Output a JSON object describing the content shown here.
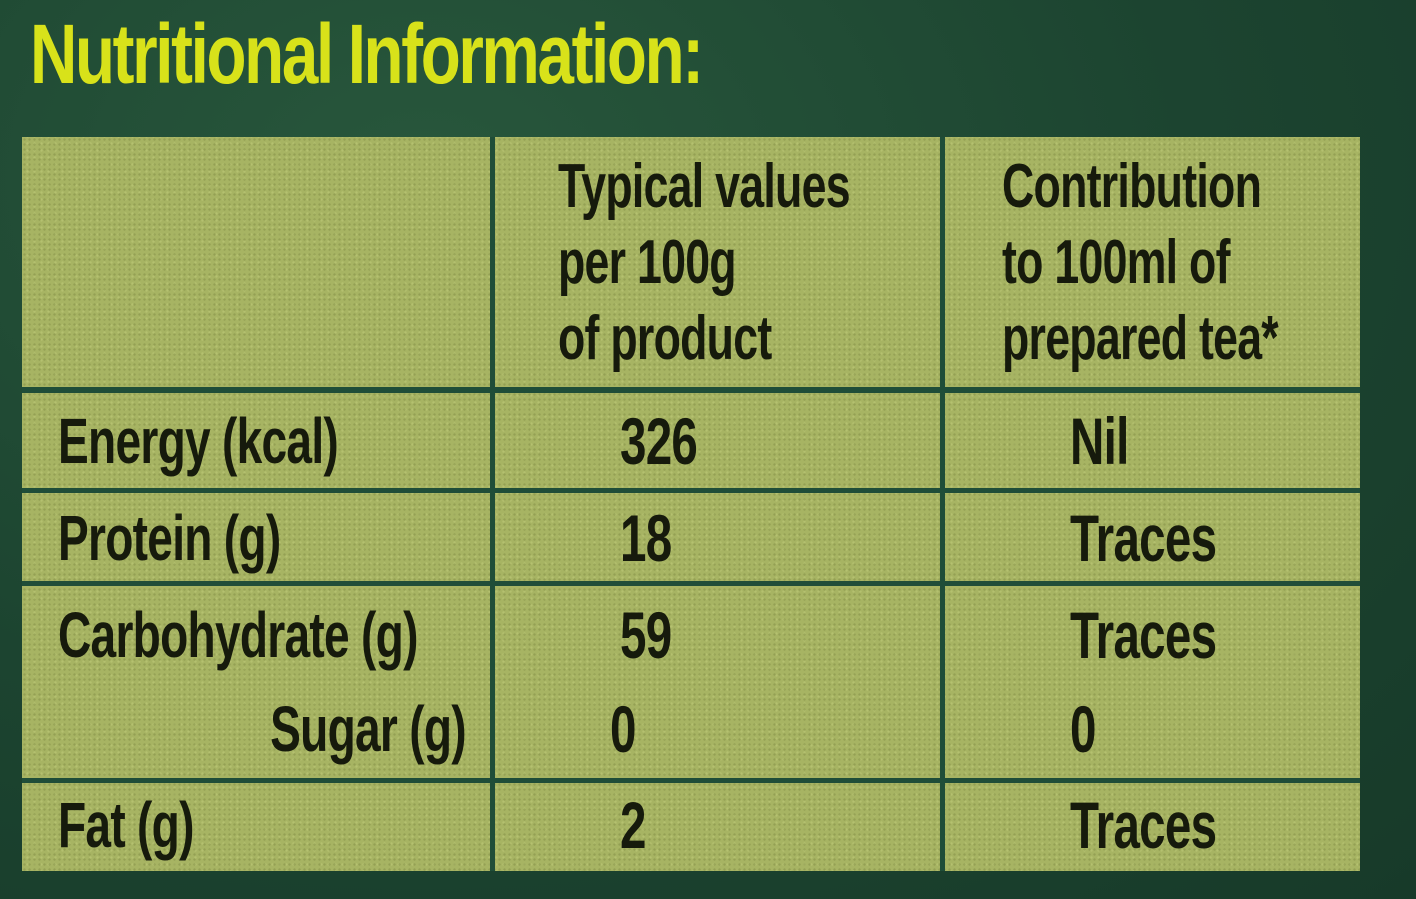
{
  "title": "Nutritional Information:",
  "headers": {
    "col2_line1": "Typical values",
    "col2_line2": "per 100g",
    "col2_line3": "of product",
    "col3_line1": "Contribution",
    "col3_line2": "to 100ml of",
    "col3_line3": "prepared tea*"
  },
  "rows": [
    {
      "label": "Energy (kcal)",
      "per100g": "326",
      "per100ml": "Nil"
    },
    {
      "label": "Protein (g)",
      "per100g": "18",
      "per100ml": "Traces"
    },
    {
      "label": "Carbohydrate (g)",
      "per100g": "59",
      "per100ml": "Traces"
    },
    {
      "label": "Sugar (g)",
      "per100g": "0",
      "per100ml": "0"
    },
    {
      "label": "Fat (g)",
      "per100g": "2",
      "per100ml": "Traces"
    }
  ],
  "colors": {
    "background": "#1f4a33",
    "title": "#d8e21a",
    "table": "#a7b463",
    "text": "#161a0c"
  }
}
